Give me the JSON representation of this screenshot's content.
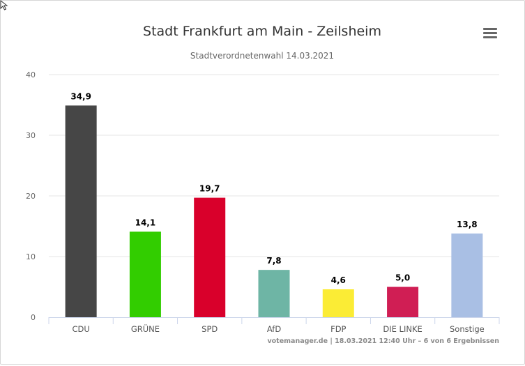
{
  "chart_data": {
    "type": "bar",
    "title": "Stadt Frankfurt am Main - Zeilsheim",
    "subtitle": "Stadtverordnetenwahl 14.03.2021",
    "categories": [
      "CDU",
      "GRÜNE",
      "SPD",
      "AfD",
      "FDP",
      "DIE LINKE",
      "Sonstige"
    ],
    "values": [
      34.9,
      14.1,
      19.7,
      7.8,
      4.6,
      5.0,
      13.8
    ],
    "data_labels": [
      "34,9",
      "14,1",
      "19,7",
      "7,8",
      "4,6",
      "5,0",
      "13,8"
    ],
    "colors": [
      "#464646",
      "#32cd00",
      "#d9002b",
      "#6eb5a5",
      "#fbec35",
      "#d01e54",
      "#a9bfe4"
    ],
    "ylim": [
      0,
      40
    ],
    "yticks": [
      0,
      10,
      20,
      30,
      40
    ],
    "xlabel": "",
    "ylabel": "",
    "grid": true,
    "credits": "votemanager.de | 18.03.2021 12:40 Uhr – 6 von 6 Ergebnissen"
  },
  "menu_icon": "hamburger-menu-icon"
}
